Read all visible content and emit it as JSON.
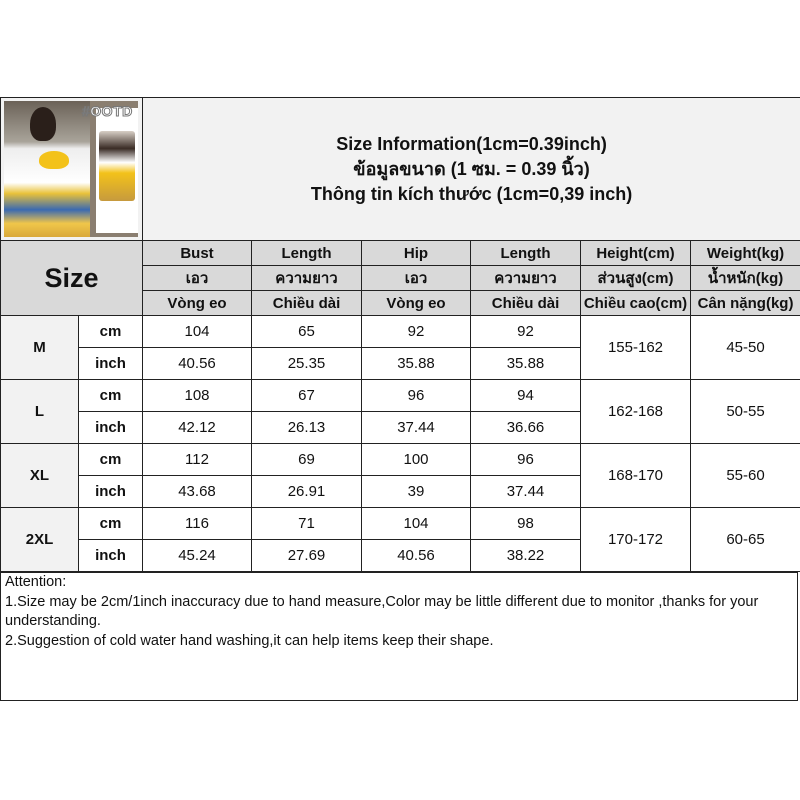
{
  "photo": {
    "watermark": "#OOTD"
  },
  "title": {
    "line1": "Size Information(1cm=0.39inch)",
    "line2": "ข้อมูลขนาด (1 ซม. = 0.39 นิ้ว)",
    "line3": "Thông tin kích thước (1cm=0,39 inch)"
  },
  "size_label": "Size",
  "headers": [
    [
      "Bust",
      "Length",
      "Hip",
      "Length",
      "Height(cm)",
      "Weight(kg)"
    ],
    [
      "เอว",
      "ความยาว",
      "เอว",
      "ความยาว",
      "ส่วนสูง(cm)",
      "น้ำหนัก(kg)"
    ],
    [
      "Vòng eo",
      "Chiều dài",
      "Vòng eo",
      "Chiều dài",
      "Chiều cao(cm)",
      "Cân nặng(kg)"
    ]
  ],
  "units": {
    "cm": "cm",
    "inch": "inch"
  },
  "rows": [
    {
      "size": "M",
      "cm": [
        "104",
        "65",
        "92",
        "92"
      ],
      "inch": [
        "40.56",
        "25.35",
        "35.88",
        "35.88"
      ],
      "height": "155-162",
      "weight": "45-50"
    },
    {
      "size": "L",
      "cm": [
        "108",
        "67",
        "96",
        "94"
      ],
      "inch": [
        "42.12",
        "26.13",
        "37.44",
        "36.66"
      ],
      "height": "162-168",
      "weight": "50-55"
    },
    {
      "size": "XL",
      "cm": [
        "112",
        "69",
        "100",
        "96"
      ],
      "inch": [
        "43.68",
        "26.91",
        "39",
        "37.44"
      ],
      "height": "168-170",
      "weight": "55-60"
    },
    {
      "size": "2XL",
      "cm": [
        "116",
        "71",
        "104",
        "98"
      ],
      "inch": [
        "45.24",
        "27.69",
        "40.56",
        "38.22"
      ],
      "height": "170-172",
      "weight": "60-65"
    }
  ],
  "attention": {
    "title": "Attention:",
    "line1": "1.Size may be 2cm/1inch inaccuracy due to hand measure,Color may be little different due to monitor ,thanks for your understanding.",
    "line2": "2.Suggestion of cold water hand washing,it can help items keep their shape."
  }
}
